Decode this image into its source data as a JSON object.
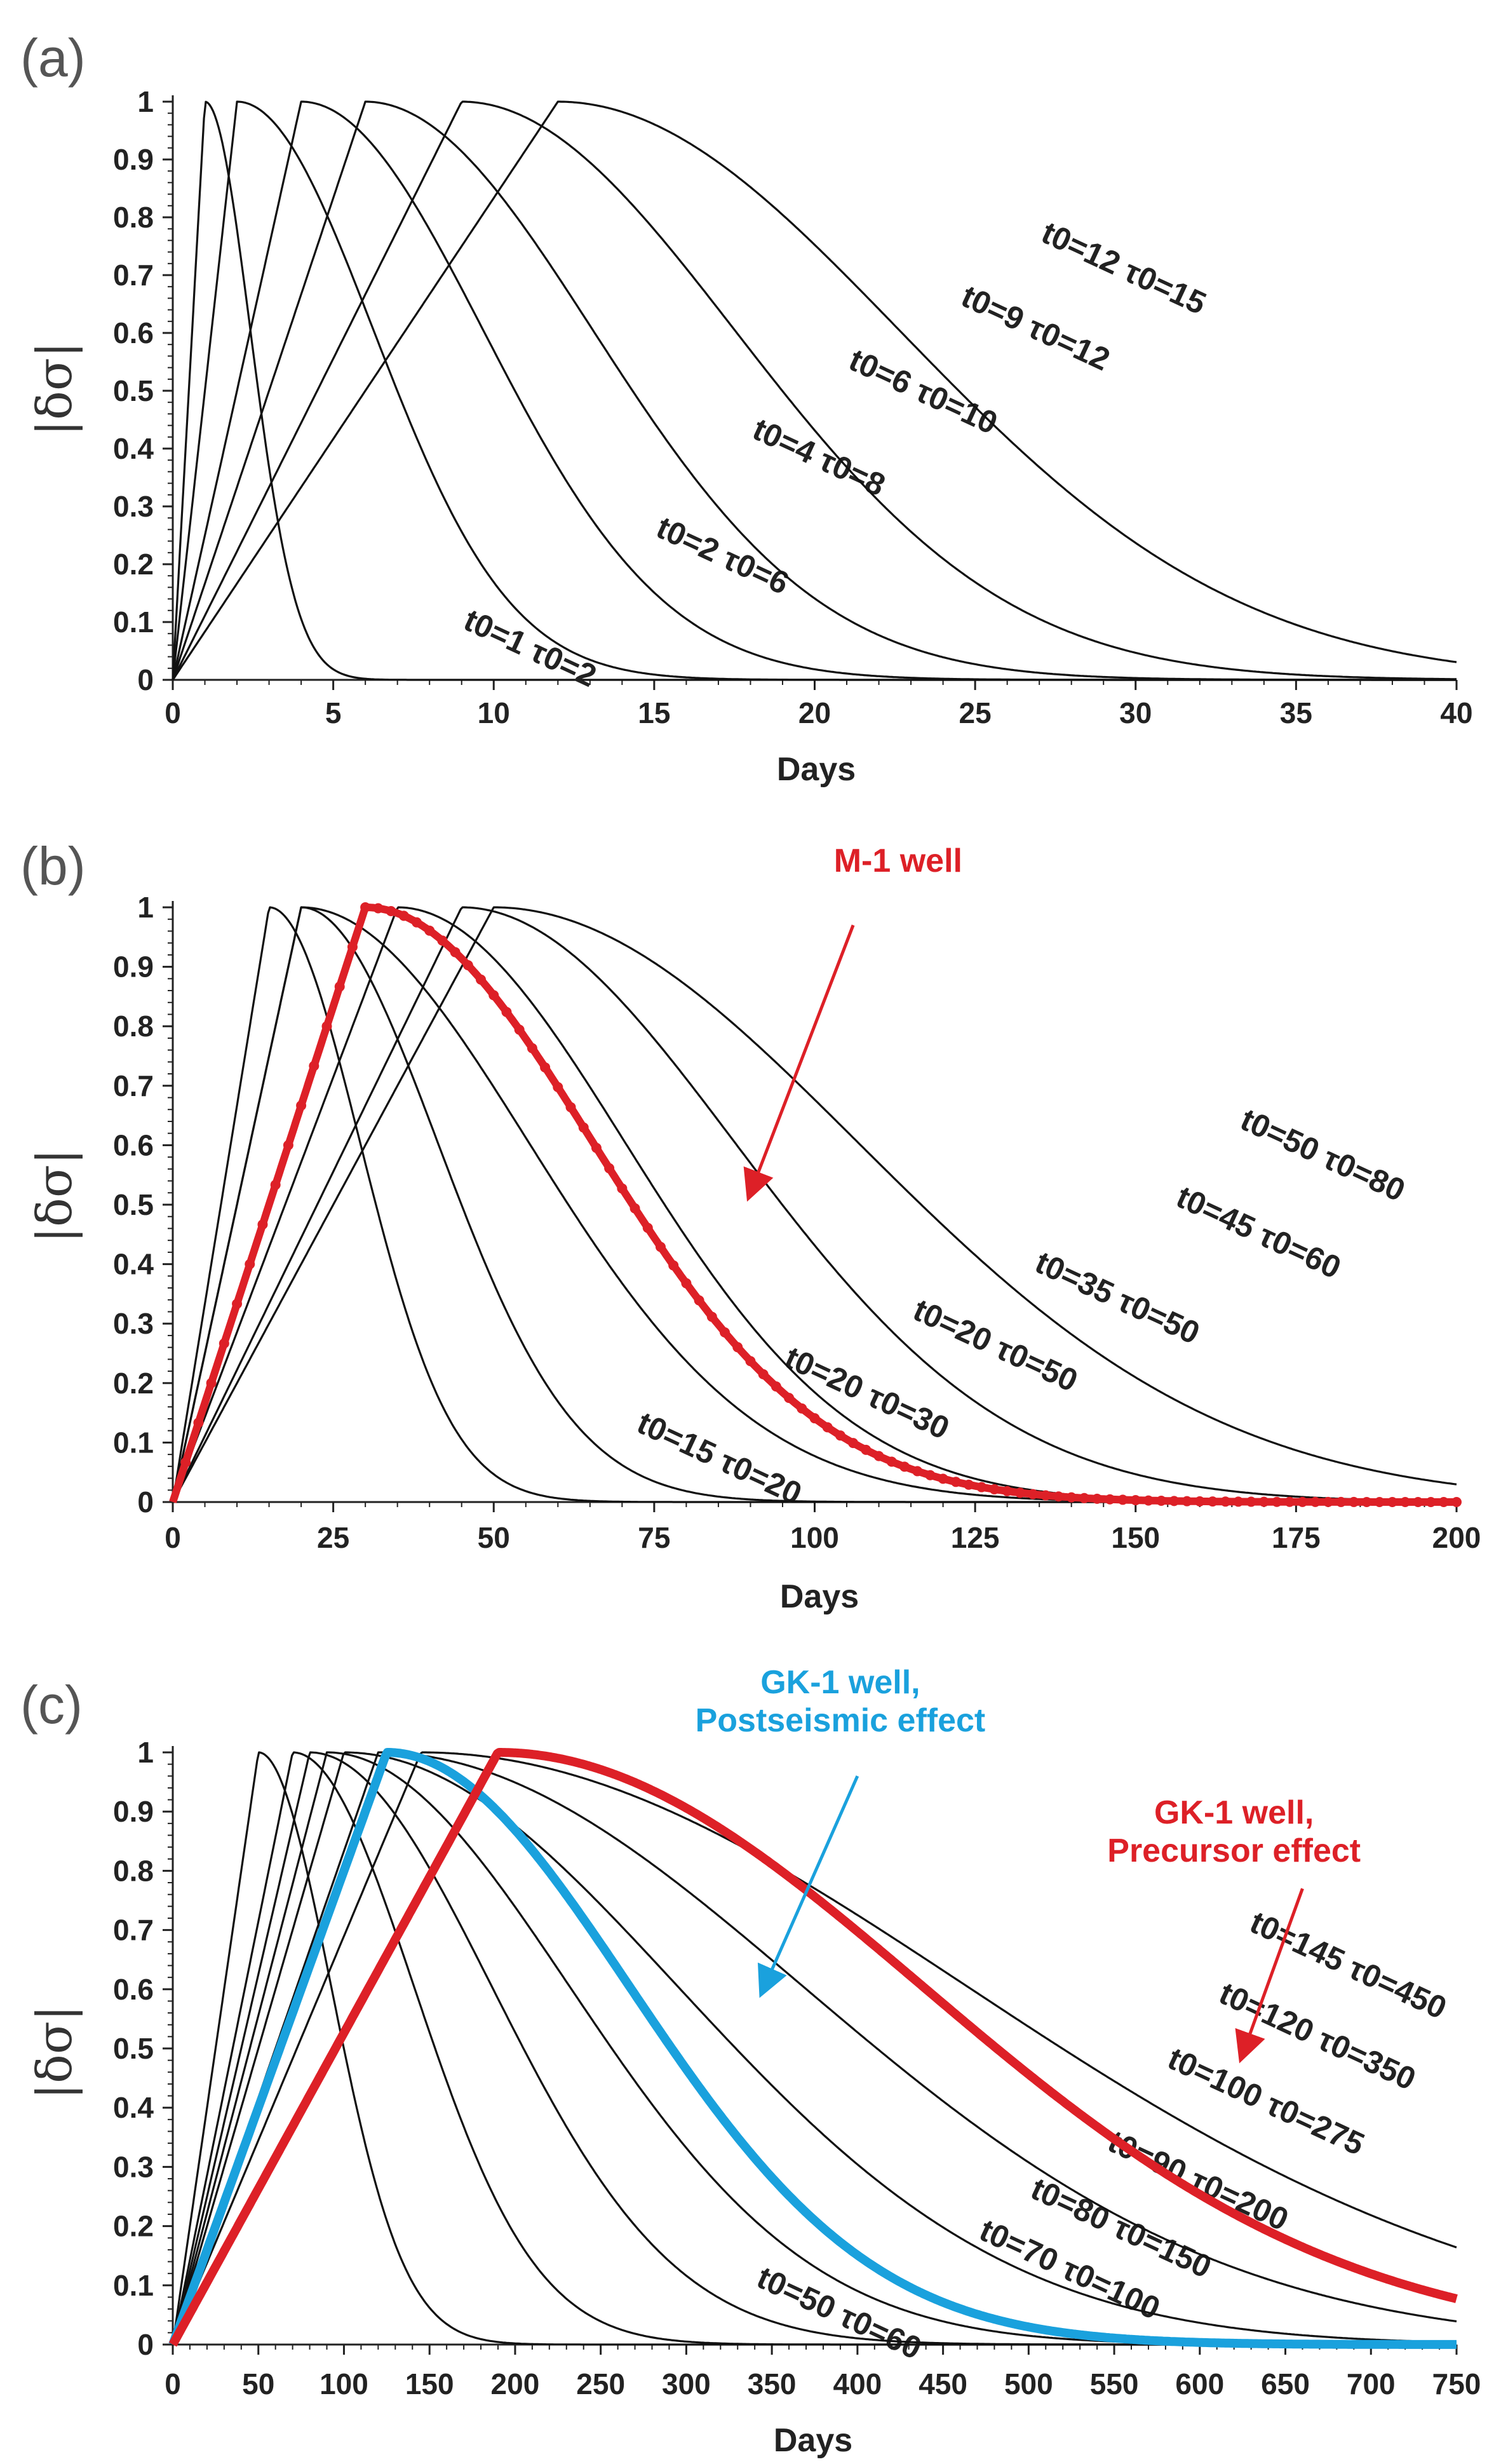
{
  "chart_data": [
    {
      "type": "line",
      "panel_label": "(a)",
      "xlabel": "Days",
      "ylabel": "|δσ|",
      "xlim": [
        0,
        40
      ],
      "ylim": [
        0,
        1
      ],
      "xticks": [
        "0",
        "5",
        "10",
        "15",
        "20",
        "25",
        "30",
        "35",
        "40"
      ],
      "yticks": [
        "0",
        "0.1",
        "0.2",
        "0.3",
        "0.4",
        "0.5",
        "0.6",
        "0.7",
        "0.8",
        "0.9",
        "1"
      ],
      "grid": false,
      "series": [
        {
          "name": "t0=1 τ0=2",
          "t0": 1,
          "tau0": 2,
          "color": "#111111",
          "label_at": [
            9,
            0.09
          ]
        },
        {
          "name": "t0=2 τ0=6",
          "t0": 2,
          "tau0": 6,
          "color": "#111111",
          "label_at": [
            15,
            0.25
          ]
        },
        {
          "name": "t0=4 τ0=8",
          "t0": 4,
          "tau0": 8,
          "color": "#111111",
          "label_at": [
            18,
            0.42
          ]
        },
        {
          "name": "t0=6 τ0=10",
          "t0": 6,
          "tau0": 10,
          "color": "#111111",
          "label_at": [
            21,
            0.54
          ]
        },
        {
          "name": "t0=9 τ0=12",
          "t0": 9,
          "tau0": 12,
          "color": "#111111",
          "label_at": [
            24.5,
            0.65
          ]
        },
        {
          "name": "t0=12 τ0=15",
          "t0": 12,
          "tau0": 15,
          "color": "#111111",
          "label_at": [
            27,
            0.76
          ]
        }
      ],
      "annotations": []
    },
    {
      "type": "line",
      "panel_label": "(b)",
      "xlabel": "Days",
      "ylabel": "|δσ|",
      "xlim": [
        0,
        200
      ],
      "ylim": [
        0,
        1
      ],
      "xticks": [
        "0",
        "25",
        "50",
        "75",
        "100",
        "125",
        "150",
        "175",
        "200"
      ],
      "yticks": [
        "0",
        "0.1",
        "0.2",
        "0.3",
        "0.4",
        "0.5",
        "0.6",
        "0.7",
        "0.8",
        "0.9",
        "1"
      ],
      "grid": false,
      "series": [
        {
          "name": "t0=15 τ0=20",
          "t0": 15,
          "tau0": 20,
          "color": "#111111",
          "label_at": [
            72,
            0.12
          ]
        },
        {
          "name": "t0=20 τ0=30",
          "t0": 20,
          "tau0": 30,
          "color": "#111111",
          "label_at": [
            95,
            0.23
          ]
        },
        {
          "name": "t0=20 τ0=50",
          "t0": 20,
          "tau0": 50,
          "color": "#111111",
          "label_at": [
            115,
            0.31
          ]
        },
        {
          "name": "t0=35 τ0=50",
          "t0": 35,
          "tau0": 50,
          "color": "#111111",
          "label_at": [
            134,
            0.39
          ]
        },
        {
          "name": "t0=45 τ0=60",
          "t0": 45,
          "tau0": 60,
          "color": "#111111",
          "label_at": [
            156,
            0.5
          ]
        },
        {
          "name": "t0=50 τ0=80",
          "t0": 50,
          "tau0": 80,
          "color": "#111111",
          "label_at": [
            166,
            0.63
          ]
        },
        {
          "name": "M-1 well",
          "t0": 30,
          "tau0": 50,
          "color": "#dd2027",
          "style": "dotted-thick"
        }
      ],
      "annotations": [
        {
          "text": "M-1 well",
          "color": "#dd2027",
          "text_at": [
            113,
            1.06
          ],
          "arrow_from": [
            106,
            0.97
          ],
          "arrow_to": [
            90,
            0.52
          ]
        }
      ]
    },
    {
      "type": "line",
      "panel_label": "(c)",
      "xlabel": "Days",
      "ylabel": "|δσ|",
      "xlim": [
        0,
        750
      ],
      "ylim": [
        0,
        1
      ],
      "xticks": [
        "0",
        "50",
        "100",
        "150",
        "200",
        "250",
        "300",
        "350",
        "400",
        "450",
        "500",
        "550",
        "600",
        "650",
        "700",
        "750"
      ],
      "yticks": [
        "0",
        "0.1",
        "0.2",
        "0.3",
        "0.4",
        "0.5",
        "0.6",
        "0.7",
        "0.8",
        "0.9",
        "1"
      ],
      "grid": false,
      "series": [
        {
          "name": "t0=50 τ0=60",
          "t0": 50,
          "tau0": 60,
          "color": "#111111",
          "label_at": [
            340,
            0.1
          ]
        },
        {
          "name": "t0=70 τ0=100",
          "t0": 70,
          "tau0": 100,
          "color": "#111111",
          "label_at": [
            470,
            0.18
          ]
        },
        {
          "name": "t0=80 τ0=150",
          "t0": 80,
          "tau0": 150,
          "color": "#111111",
          "label_at": [
            500,
            0.25
          ]
        },
        {
          "name": "t0=90 τ0=200",
          "t0": 90,
          "tau0": 200,
          "color": "#111111",
          "label_at": [
            545,
            0.33
          ]
        },
        {
          "name": "t0=100 τ0=275",
          "t0": 100,
          "tau0": 275,
          "color": "#111111",
          "label_at": [
            580,
            0.47
          ]
        },
        {
          "name": "t0=120 τ0=350",
          "t0": 120,
          "tau0": 350,
          "color": "#111111",
          "label_at": [
            610,
            0.58
          ]
        },
        {
          "name": "t0=145 τ0=450",
          "t0": 145,
          "tau0": 450,
          "color": "#111111",
          "label_at": [
            628,
            0.7
          ]
        },
        {
          "name": "GK-1 well, Postseismic effect",
          "t0": 125,
          "tau0": 200,
          "color": "#1aa1dd",
          "style": "thick"
        },
        {
          "name": "GK-1 well, Precursor effect",
          "t0": 190,
          "tau0": 350,
          "color": "#dd2027",
          "style": "thick"
        }
      ],
      "annotations": [
        {
          "text": "GK-1 well,",
          "text2": "Postseismic effect",
          "color": "#1aa1dd",
          "text_at": [
            390,
            1.1
          ],
          "arrow_from": [
            400,
            0.96
          ],
          "arrow_to": [
            345,
            0.6
          ]
        },
        {
          "text": "GK-1 well,",
          "text2": "Precursor effect",
          "color": "#dd2027",
          "text_at": [
            620,
            0.88
          ],
          "arrow_from": [
            660,
            0.77
          ],
          "arrow_to": [
            625,
            0.49
          ]
        }
      ]
    }
  ]
}
